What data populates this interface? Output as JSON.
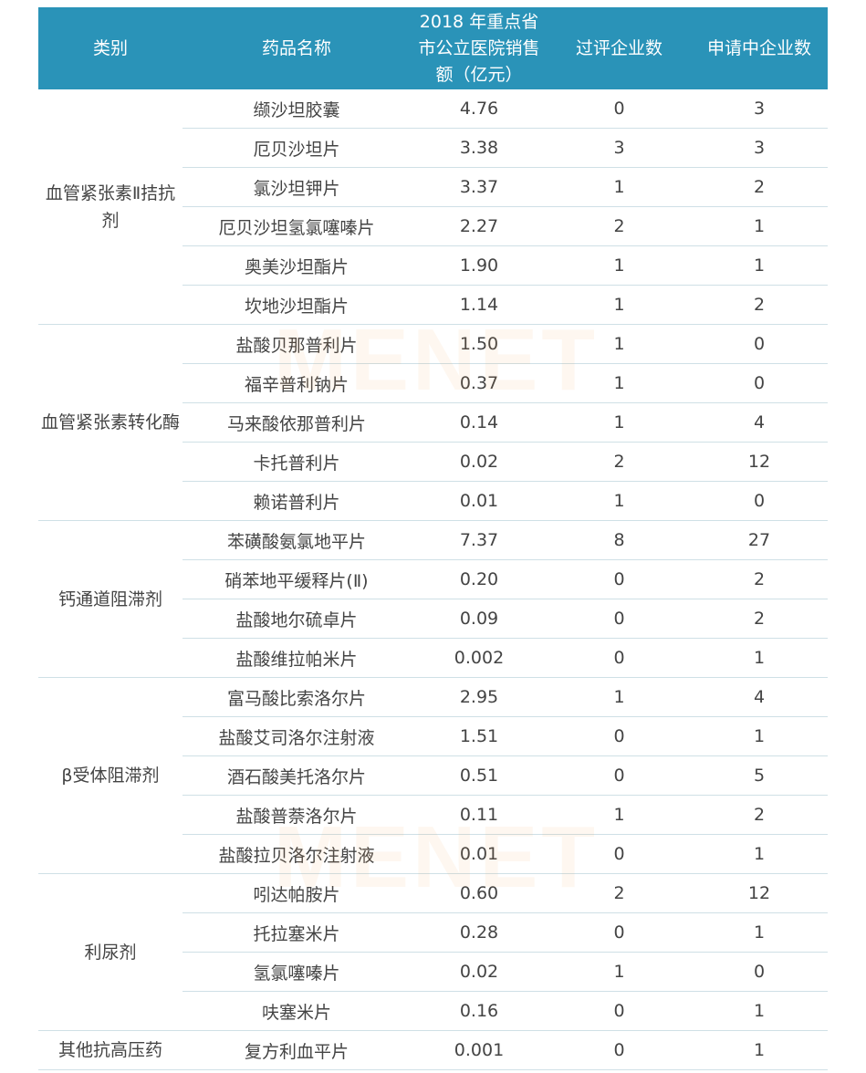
{
  "header": [
    "类别",
    "药品名称",
    "2018 年重点省市公立医院销售额（亿元）",
    "过评企业数",
    "申请中企业数"
  ],
  "watermark": "MENET",
  "colors": {
    "header_bg": "#2a93b8",
    "header_text": "#ffffff"
  },
  "groups": [
    {
      "category": "血管紧张素Ⅱ拮抗剂",
      "rows": [
        [
          "缬沙坦胶囊",
          "4.76",
          "0",
          "3"
        ],
        [
          "厄贝沙坦片",
          "3.38",
          "3",
          "3"
        ],
        [
          "氯沙坦钾片",
          "3.37",
          "1",
          "2"
        ],
        [
          "厄贝沙坦氢氯噻嗪片",
          "2.27",
          "2",
          "1"
        ],
        [
          "奥美沙坦酯片",
          "1.90",
          "1",
          "1"
        ],
        [
          "坎地沙坦酯片",
          "1.14",
          "1",
          "2"
        ]
      ]
    },
    {
      "category": "血管紧张素转化酶",
      "rows": [
        [
          "盐酸贝那普利片",
          "1.50",
          "1",
          "0"
        ],
        [
          "福辛普利钠片",
          "0.37",
          "1",
          "0"
        ],
        [
          "马来酸依那普利片",
          "0.14",
          "1",
          "4"
        ],
        [
          "卡托普利片",
          "0.02",
          "2",
          "12"
        ],
        [
          "赖诺普利片",
          "0.01",
          "1",
          "0"
        ]
      ]
    },
    {
      "category": "钙通道阻滞剂",
      "rows": [
        [
          "苯磺酸氨氯地平片",
          "7.37",
          "8",
          "27"
        ],
        [
          "硝苯地平缓释片(Ⅱ)",
          "0.20",
          "0",
          "2"
        ],
        [
          "盐酸地尔硫卓片",
          "0.09",
          "0",
          "2"
        ],
        [
          "盐酸维拉帕米片",
          "0.002",
          "0",
          "1"
        ]
      ]
    },
    {
      "category": "β受体阻滞剂",
      "rows": [
        [
          "富马酸比索洛尔片",
          "2.95",
          "1",
          "4"
        ],
        [
          "盐酸艾司洛尔注射液",
          "1.51",
          "0",
          "1"
        ],
        [
          "酒石酸美托洛尔片",
          "0.51",
          "0",
          "5"
        ],
        [
          "盐酸普萘洛尔片",
          "0.11",
          "1",
          "2"
        ],
        [
          "盐酸拉贝洛尔注射液",
          "0.01",
          "0",
          "1"
        ]
      ]
    },
    {
      "category": "利尿剂",
      "rows": [
        [
          "吲达帕胺片",
          "0.60",
          "2",
          "12"
        ],
        [
          "托拉塞米片",
          "0.28",
          "0",
          "1"
        ],
        [
          "氢氯噻嗪片",
          "0.02",
          "1",
          "0"
        ],
        [
          "呋塞米片",
          "0.16",
          "0",
          "1"
        ]
      ]
    },
    {
      "category": "其他抗高压药",
      "rows": [
        [
          "复方利血平片",
          "0.001",
          "0",
          "1"
        ]
      ]
    }
  ]
}
